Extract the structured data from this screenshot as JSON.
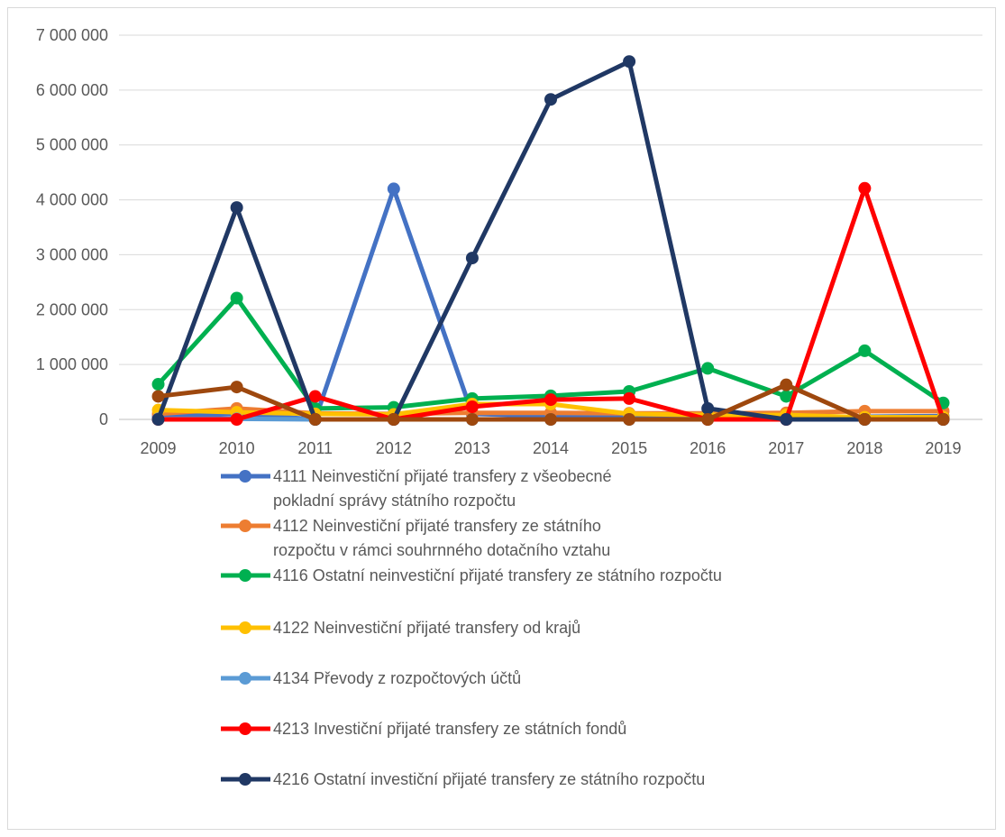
{
  "chart_data": {
    "type": "line",
    "title": "",
    "xlabel": "",
    "ylabel": "",
    "categories": [
      "2009",
      "2010",
      "2011",
      "2012",
      "2013",
      "2014",
      "2015",
      "2016",
      "2017",
      "2018",
      "2019"
    ],
    "ylim": [
      0,
      7000000
    ],
    "yticks": [
      0,
      1000000,
      2000000,
      3000000,
      4000000,
      5000000,
      6000000,
      7000000
    ],
    "ytick_labels": [
      "0",
      "1 000 000",
      "2 000 000",
      "3 000 000",
      "4 000 000",
      "5 000 000",
      "6 000 000",
      "7 000 000"
    ],
    "grid": "horizontal",
    "legend_position": "bottom",
    "series": [
      {
        "name": "4111 Neinvestiční přijaté transfery z všeobecné pokladní správy státního rozpočtu",
        "legend_lines": [
          "4111 Neinvestiční přijaté transfery z všeobecné",
          "pokladní správy státního rozpočtu"
        ],
        "color": "#4472C4",
        "values": [
          50000,
          100000,
          0,
          4200000,
          100000,
          60000,
          40000,
          30000,
          20000,
          50000,
          60000
        ]
      },
      {
        "name": "4112 Neinvestiční přijaté transfery ze státního rozpočtu v rámci souhrnného dotačního vztahu",
        "legend_lines": [
          "4112 Neinvestiční přijaté transfery ze státního",
          " rozpočtu v rámci souhrnného dotačního vztahu"
        ],
        "color": "#ED7D31",
        "values": [
          100000,
          200000,
          110000,
          100000,
          120000,
          120000,
          110000,
          110000,
          120000,
          150000,
          150000
        ]
      },
      {
        "name": "4116 Ostatní neinvestiční přijaté transfery ze státního rozpočtu",
        "legend_lines": [
          "4116 Ostatní neinvestiční přijaté transfery ze státního rozpočtu"
        ],
        "color": "#00B050",
        "values": [
          640000,
          2210000,
          200000,
          220000,
          380000,
          430000,
          510000,
          930000,
          420000,
          1250000,
          300000
        ]
      },
      {
        "name": "4122 Neinvestiční přijaté transfery od krajů",
        "legend_lines": [
          "4122 Neinvestiční přijaté transfery od krajů"
        ],
        "color": "#FFC000",
        "values": [
          170000,
          130000,
          100000,
          90000,
          280000,
          280000,
          100000,
          80000,
          80000,
          40000,
          40000
        ]
      },
      {
        "name": "4134 Převody z rozpočtových účtů",
        "legend_lines": [
          "4134 Převody z rozpočtových účtů"
        ],
        "color": "#5B9BD5",
        "values": [
          10000,
          10000,
          0,
          0,
          0,
          0,
          0,
          0,
          0,
          0,
          0
        ]
      },
      {
        "name": "4213 Investiční přijaté transfery ze státních fondů",
        "legend_lines": [
          "4213 Investiční přijaté transfery ze státních fondů"
        ],
        "color": "#FF0000",
        "values": [
          0,
          0,
          420000,
          0,
          230000,
          360000,
          380000,
          0,
          0,
          4210000,
          0
        ]
      },
      {
        "name": "4216 Ostatní investiční přijaté transfery ze státního rozpočtu",
        "legend_lines": [
          "4216 Ostatní investiční přijaté transfery ze státního rozpočtu"
        ],
        "color": "#203864",
        "values": [
          0,
          3860000,
          0,
          0,
          2940000,
          5830000,
          6520000,
          200000,
          0,
          0,
          0
        ]
      },
      {
        "name": "",
        "legend_lines": [],
        "color": "#9E480E",
        "values": [
          420000,
          590000,
          0,
          0,
          0,
          0,
          0,
          0,
          630000,
          0,
          0
        ]
      }
    ]
  }
}
